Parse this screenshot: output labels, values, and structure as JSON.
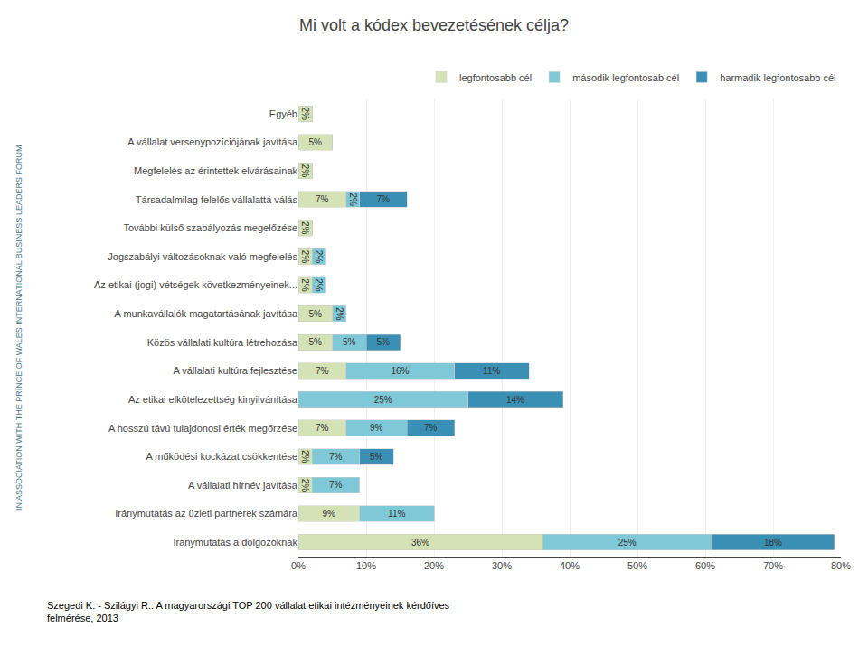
{
  "chart_data": {
    "type": "bar",
    "orientation": "horizontal",
    "stacked": true,
    "title": "Mi volt a kódex bevezetésének célja?",
    "categories": [
      "Egyéb",
      "A vállalat versenypozíciójának javítása",
      "Megfelelés az érintettek elvárásainak",
      "Társadalmilag felelős vállalattá válás",
      "További külső szabályozás megelőzése",
      "Jogszabályi változásoknak való megfelelés",
      "Az etikai (jogi) vétségek következményeinek...",
      "A munkavállalók magatartásának javítása",
      "Közös vállalati kultúra létrehozása",
      "A vállalati kultúra fejlesztése",
      "Az etikai elkötelezettség kinyilvánítása",
      "A hosszú távú tulajdonosi érték megőrzése",
      "A működési kockázat csökkentése",
      "A vállalati hírnév javítása",
      "Iránymutatás az üzleti partnerek számára",
      "Iránymutatás a dolgozóknak"
    ],
    "series": [
      {
        "name": "legfontosabb cél",
        "color": "#d4e2b6",
        "values": [
          2,
          5,
          2,
          7,
          2,
          2,
          2,
          5,
          5,
          7,
          0,
          7,
          2,
          2,
          9,
          36
        ],
        "value_labels": [
          "2%",
          "5%",
          "2%",
          "7%",
          "2%",
          "2%",
          "2%",
          "5%",
          "5%",
          "7%",
          null,
          "7%",
          "2%",
          "2%",
          "9%",
          "36%"
        ]
      },
      {
        "name": "második legfontosab cél",
        "color": "#7ec8d8",
        "values": [
          0,
          0,
          0,
          2,
          0,
          2,
          2,
          2,
          5,
          16,
          25,
          9,
          7,
          7,
          11,
          25
        ],
        "value_labels": [
          null,
          null,
          null,
          "2%",
          null,
          "2%",
          "2%",
          "2%",
          "5%",
          "16%",
          "25%",
          "9%",
          "7%",
          "7%",
          "11%",
          "25%"
        ]
      },
      {
        "name": "harmadik legfontosabb cél",
        "color": "#3a8fb5",
        "values": [
          0,
          0,
          0,
          7,
          0,
          0,
          0,
          0,
          5,
          11,
          14,
          7,
          5,
          0,
          0,
          18
        ],
        "value_labels": [
          null,
          null,
          null,
          "7%",
          null,
          null,
          null,
          null,
          "5%",
          "11%",
          "14%",
          "7%",
          "5%",
          null,
          null,
          "18%"
        ]
      }
    ],
    "xlim": [
      0,
      80
    ],
    "xticks": [
      {
        "value": 0,
        "label": "0%"
      },
      {
        "value": 10,
        "label": "10%"
      },
      {
        "value": 20,
        "label": "20%"
      },
      {
        "value": 30,
        "label": "30%"
      },
      {
        "value": 40,
        "label": "40%"
      },
      {
        "value": 50,
        "label": "50%"
      },
      {
        "value": 60,
        "label": "60%"
      },
      {
        "value": 70,
        "label": "70%"
      },
      {
        "value": 80,
        "label": "80%"
      }
    ],
    "grid": true,
    "legend": "upper right",
    "data_labels": true,
    "annotations": [
      "IN ASSOCIATION WITH THE PRINCE OF WALES INTERNATIONAL BUSINESS LEADERS FORUM",
      "Szegedi K. - Szilágyi R.: A magyarországi TOP 200 vállalat etikai intézményeinek kérdőíves\nfelmérése, 2013"
    ]
  }
}
